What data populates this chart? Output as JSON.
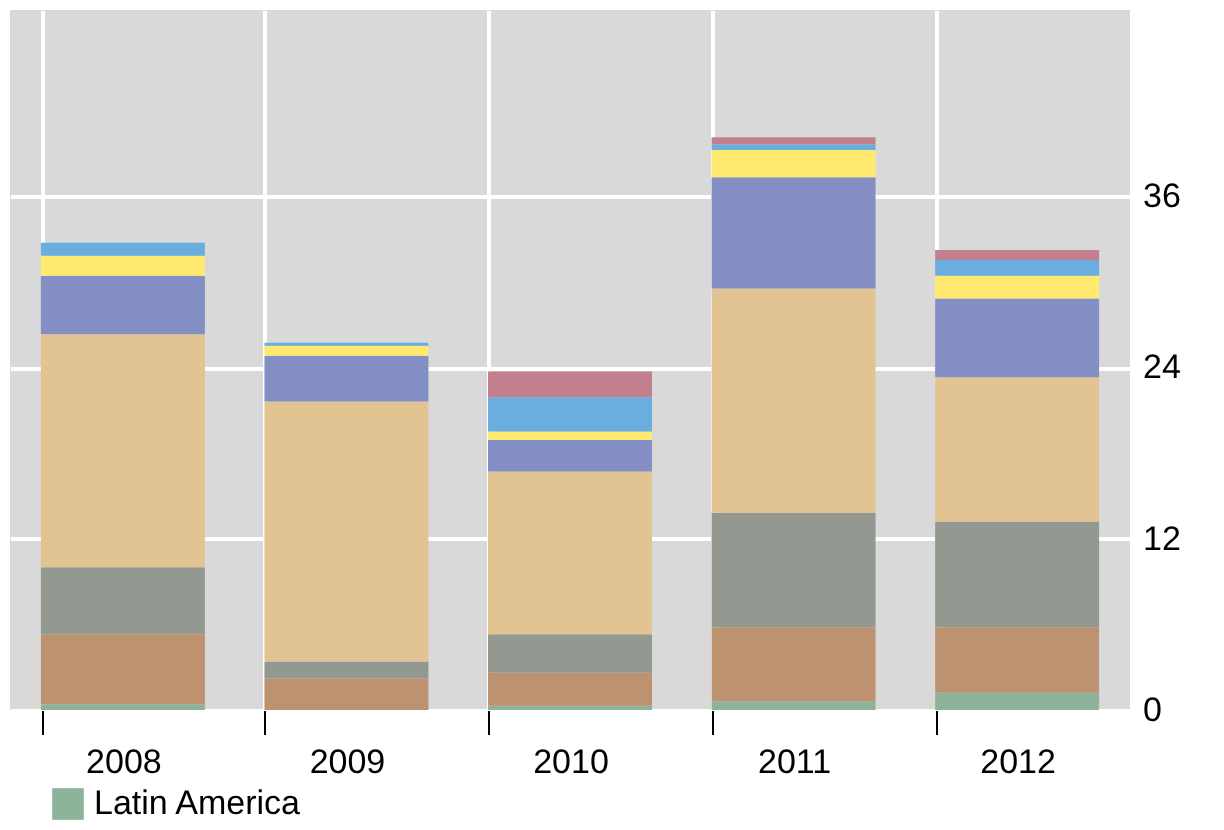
{
  "chart_data": {
    "type": "bar",
    "stacked": true,
    "categories": [
      "2008",
      "2009",
      "2010",
      "2011",
      "2012"
    ],
    "series": [
      {
        "name": "Latin America",
        "color": "#8db49a",
        "values": [
          0.4,
          0,
          0.3,
          0.6,
          1.2
        ]
      },
      {
        "color": "#bc9270",
        "values": [
          4.9,
          2.2,
          2.3,
          5.2,
          4.6
        ]
      },
      {
        "color": "#939891",
        "values": [
          4.7,
          1.2,
          2.7,
          8.0,
          7.4
        ]
      },
      {
        "color": "#e2c392",
        "values": [
          16.3,
          18.2,
          11.4,
          15.7,
          10.1
        ]
      },
      {
        "color": "#838fc5",
        "values": [
          4.1,
          3.2,
          2.2,
          7.8,
          5.5
        ]
      },
      {
        "color": "#ffe96e",
        "values": [
          1.4,
          0.7,
          0.6,
          1.9,
          1.6
        ]
      },
      {
        "color": "#6aaee0",
        "values": [
          0.9,
          0.2,
          2.4,
          0.4,
          1.1
        ]
      },
      {
        "color": "#c27f8e",
        "values": [
          0,
          0,
          1.8,
          0.5,
          0.7
        ]
      }
    ],
    "ylim": [
      0,
      49
    ],
    "yticks": [
      0,
      12,
      24,
      36
    ],
    "grid": true,
    "legend": "bottom left"
  }
}
